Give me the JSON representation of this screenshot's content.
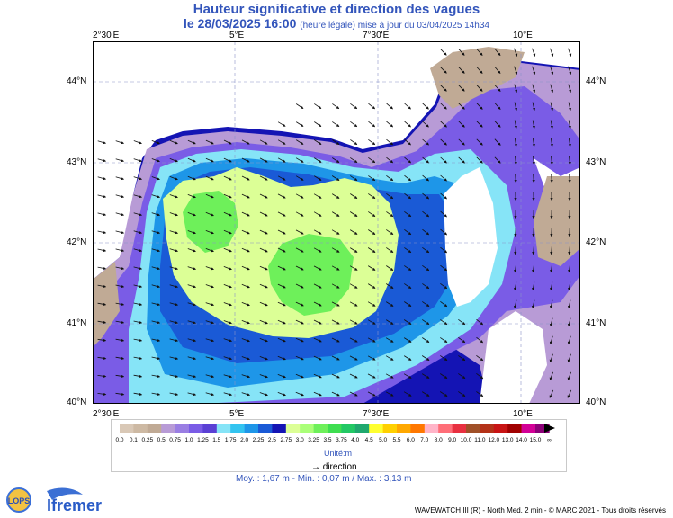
{
  "title": {
    "line1": "Hauteur significative et direction des vagues",
    "date": "le 28/03/2025 16:00",
    "note": "(heure légale) mise à jour du 03/04/2025 14h34"
  },
  "axes": {
    "lon_ticks": [
      "2°30'E",
      "5°E",
      "7°30'E",
      "10°E"
    ],
    "lat_ticks": [
      "44°N",
      "43°N",
      "42°N",
      "41°N",
      "40°N"
    ]
  },
  "legend": {
    "labels": [
      "0,0",
      "0,1",
      "0,25",
      "0,5",
      "0,75",
      "1,0",
      "1,25",
      "1,5",
      "1,75",
      "2,0",
      "2,25",
      "2,5",
      "2,75",
      "3,0",
      "3,25",
      "3,5",
      "3,75",
      "4,0",
      "4,5",
      "5,0",
      "5,5",
      "6,0",
      "7,0",
      "8,0",
      "9,0",
      "10,0",
      "11,0",
      "12,0",
      "13,0",
      "14,0",
      "15,0",
      "∞"
    ],
    "colors": [
      "#d9c8b6",
      "#cdb9a3",
      "#c0aa95",
      "#b89bd6",
      "#9a7ee3",
      "#7a5ce6",
      "#5a40d4",
      "#86e4f7",
      "#33c4f0",
      "#1e96e8",
      "#1a5ad6",
      "#1414b4",
      "#dcff96",
      "#aaff78",
      "#6ef05a",
      "#3ede50",
      "#22c864",
      "#1fa86e",
      "#ffff30",
      "#ffd000",
      "#ffa800",
      "#ff7800",
      "#ffb4c8",
      "#ff6e78",
      "#e83040",
      "#a05028",
      "#b43218",
      "#c81414",
      "#a00000",
      "#d20096",
      "#8c0078"
    ],
    "units": "Unité:m",
    "direction_label": "→ direction"
  },
  "stats": "Moy. : 1,67 m   -   Min. : 0,07 m / Max. : 3,13 m",
  "footer": "WAVEWATCH III (R) - North Med. 2 min - © MARC 2021 - Tous droits réservés",
  "logos": {
    "lops": "LOPS",
    "ifremer": "Ifremer"
  }
}
